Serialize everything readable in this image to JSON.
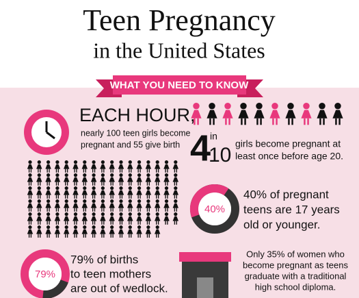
{
  "header": {
    "title_line1": "Teen Pregnancy",
    "title_line2": "in the United States",
    "banner": "WHAT YOU NEED TO KNOW"
  },
  "each_hour": {
    "heading": "EACH HOUR,",
    "lines": [
      "nearly 100 teen girls become",
      "pregnant and 55 give birth"
    ]
  },
  "four_in_ten": {
    "four": "4",
    "in": "in",
    "ten": "10",
    "lines": [
      "girls become pregnant at",
      "least once before age 20."
    ]
  },
  "forty_percent": {
    "label": "40%",
    "lines": [
      "40% of pregnant",
      "teens are 17 years",
      "old or younger."
    ]
  },
  "seventy_nine_percent": {
    "label": "79%",
    "lines": [
      "79% of births",
      "to teen mothers",
      "are out of wedlock."
    ]
  },
  "diploma": {
    "lines": [
      "Only 35% of women who",
      "become pregnant as teens",
      "graduate with a traditional",
      "high school diploma."
    ]
  }
}
